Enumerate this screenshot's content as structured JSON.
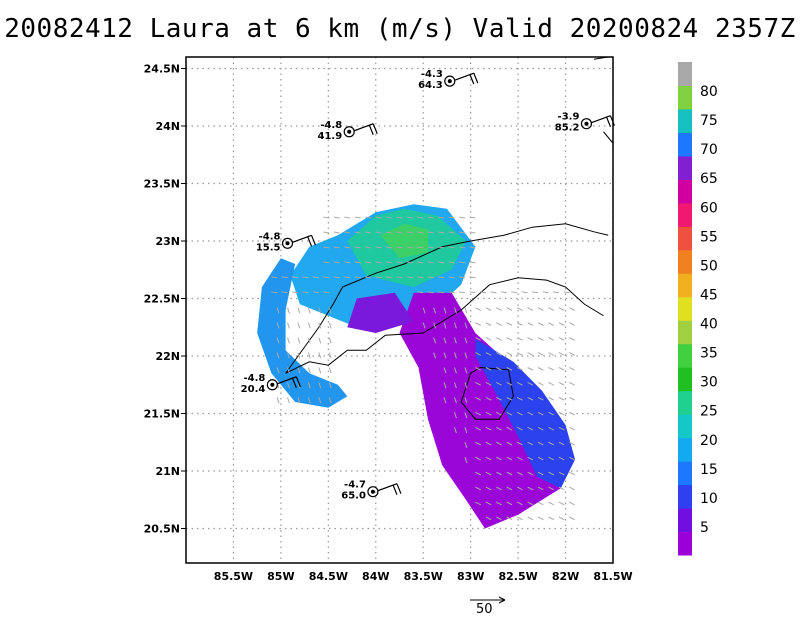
{
  "title": "20082412 Laura at 6 km (m/s) Valid 20200824 2357Z",
  "map": {
    "lon_range": [
      -86.0,
      -81.5
    ],
    "lat_range": [
      20.2,
      24.6
    ],
    "lon_ticks": [
      {
        "v": -85.5,
        "label": "85.5W"
      },
      {
        "v": -85.0,
        "label": "85W"
      },
      {
        "v": -84.5,
        "label": "84.5W"
      },
      {
        "v": -84.0,
        "label": "84W"
      },
      {
        "v": -83.5,
        "label": "83.5W"
      },
      {
        "v": -83.0,
        "label": "83W"
      },
      {
        "v": -82.5,
        "label": "82.5W"
      },
      {
        "v": -82.0,
        "label": "82W"
      },
      {
        "v": -81.5,
        "label": "81.5W"
      }
    ],
    "lat_ticks": [
      {
        "v": 20.5,
        "label": "20.5N"
      },
      {
        "v": 21.0,
        "label": "21N"
      },
      {
        "v": 21.5,
        "label": "21.5N"
      },
      {
        "v": 22.0,
        "label": "22N"
      },
      {
        "v": 22.5,
        "label": "22.5N"
      },
      {
        "v": 23.0,
        "label": "23N"
      },
      {
        "v": 23.5,
        "label": "23.5N"
      },
      {
        "v": 24.0,
        "label": "24N"
      },
      {
        "v": 24.5,
        "label": "24.5N"
      }
    ]
  },
  "stations": [
    {
      "lon": -83.22,
      "lat": 24.39,
      "top": "-4.3",
      "bottom": "64.3"
    },
    {
      "lon": -84.28,
      "lat": 23.95,
      "top": "-4.8",
      "bottom": "41.9"
    },
    {
      "lon": -81.78,
      "lat": 24.02,
      "top": "-3.9",
      "bottom": "85.2"
    },
    {
      "lon": -84.93,
      "lat": 22.98,
      "top": "-4.8",
      "bottom": "15.5"
    },
    {
      "lon": -85.09,
      "lat": 21.75,
      "top": "-4.8",
      "bottom": "20.4"
    },
    {
      "lon": -84.03,
      "lat": 20.82,
      "top": "-4.7",
      "bottom": "65.0"
    }
  ],
  "colorbar": {
    "labels": [
      "5",
      "10",
      "15",
      "20",
      "25",
      "30",
      "35",
      "40",
      "45",
      "50",
      "55",
      "60",
      "65",
      "70",
      "75",
      "80"
    ],
    "colors": [
      "#9b00d8",
      "#7010e0",
      "#3040f0",
      "#1e78ff",
      "#14aaf0",
      "#14c8c8",
      "#20d090",
      "#20c020",
      "#40d040",
      "#a0d040",
      "#e0e020",
      "#f0b020",
      "#f08020",
      "#f05040",
      "#f01870",
      "#d000a0",
      "#8020d0",
      "#1e78ff",
      "#14c0c0",
      "#80d040",
      "#a8a8a8"
    ]
  },
  "reference_vector": {
    "label": "50"
  }
}
